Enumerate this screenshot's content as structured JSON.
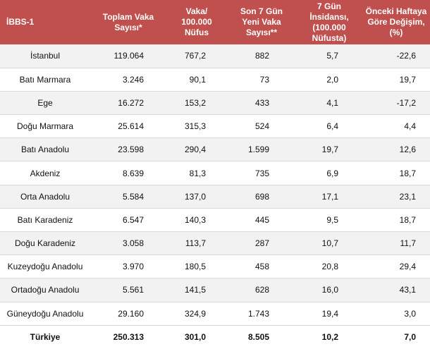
{
  "headers": [
    "İBBS-1",
    "Toplam Vaka\nSayısı*",
    "Vaka/\n100.000\nNüfus",
    "Son 7 Gün\nYeni Vaka\nSayısı**",
    "7 Gün İnsidansı,\n(100.000\nNüfusta)",
    "Önceki Haftaya\nGöre Değişim,\n(%)"
  ],
  "rows": [
    [
      "İstanbul",
      "119.064",
      "767,2",
      "882",
      "5,7",
      "-22,6"
    ],
    [
      "Batı Marmara",
      "3.246",
      "90,1",
      "73",
      "2,0",
      "19,7"
    ],
    [
      "Ege",
      "16.272",
      "153,2",
      "433",
      "4,1",
      "-17,2"
    ],
    [
      "Doğu Marmara",
      "25.614",
      "315,3",
      "524",
      "6,4",
      "4,4"
    ],
    [
      "Batı Anadolu",
      "23.598",
      "290,4",
      "1.599",
      "19,7",
      "12,6"
    ],
    [
      "Akdeniz",
      "8.639",
      "81,3",
      "735",
      "6,9",
      "18,7"
    ],
    [
      "Orta Anadolu",
      "5.584",
      "137,0",
      "698",
      "17,1",
      "23,1"
    ],
    [
      "Batı Karadeniz",
      "6.547",
      "140,3",
      "445",
      "9,5",
      "18,7"
    ],
    [
      "Doğu Karadeniz",
      "3.058",
      "113,7",
      "287",
      "10,7",
      "11,7"
    ],
    [
      "Kuzeydoğu Anadolu",
      "3.970",
      "180,5",
      "458",
      "20,8",
      "29,4"
    ],
    [
      "Ortadoğu Anadolu",
      "5.561",
      "141,5",
      "628",
      "16,0",
      "43,1"
    ],
    [
      "Güneydoğu Anadolu",
      "29.160",
      "324,9",
      "1.743",
      "19,4",
      "3,0"
    ]
  ],
  "total": [
    "Türkiye",
    "250.313",
    "301,0",
    "8.505",
    "10,2",
    "7,0"
  ],
  "colors": {
    "header_bg": "#c0504d",
    "header_text": "#ffffff",
    "stripe": "#f2f2f2"
  }
}
